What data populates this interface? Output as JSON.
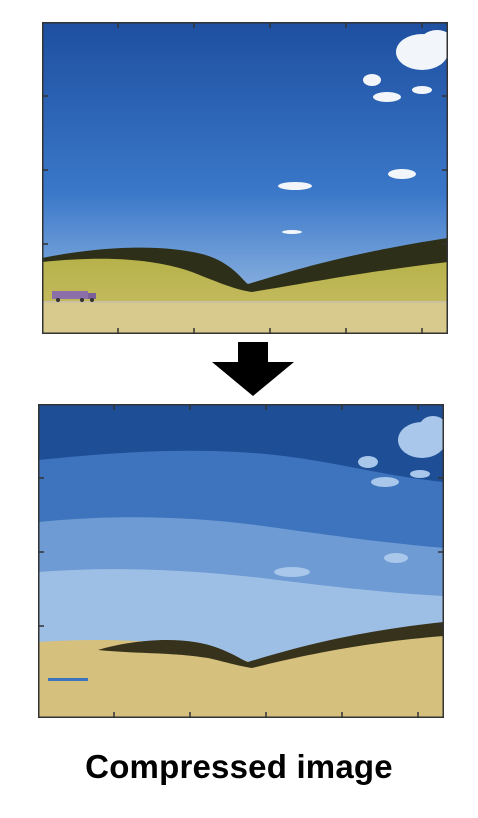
{
  "caption": "Compressed image",
  "original_panel": {
    "icon": "landscape-photo-original",
    "colors": {
      "sky_top": "#1e4fa0",
      "sky_mid": "#3b78c9",
      "sky_bottom": "#a9c7e8",
      "hills_dark": "#2e2f18",
      "field": "#b7b24a",
      "ground": "#d8c98c",
      "frame": "#333333"
    }
  },
  "compressed_panel": {
    "icon": "landscape-photo-quantized",
    "colors": {
      "band_1": "#1e4f96",
      "band_2": "#3d74bd",
      "band_3": "#6e9bd3",
      "band_4": "#9dbfe6",
      "cloud": "#a9c7ea",
      "hills": "#37321b",
      "ground": "#d6c07e",
      "frame": "#333333"
    }
  },
  "arrow": {
    "icon": "arrow-down-icon",
    "color": "#000000"
  }
}
